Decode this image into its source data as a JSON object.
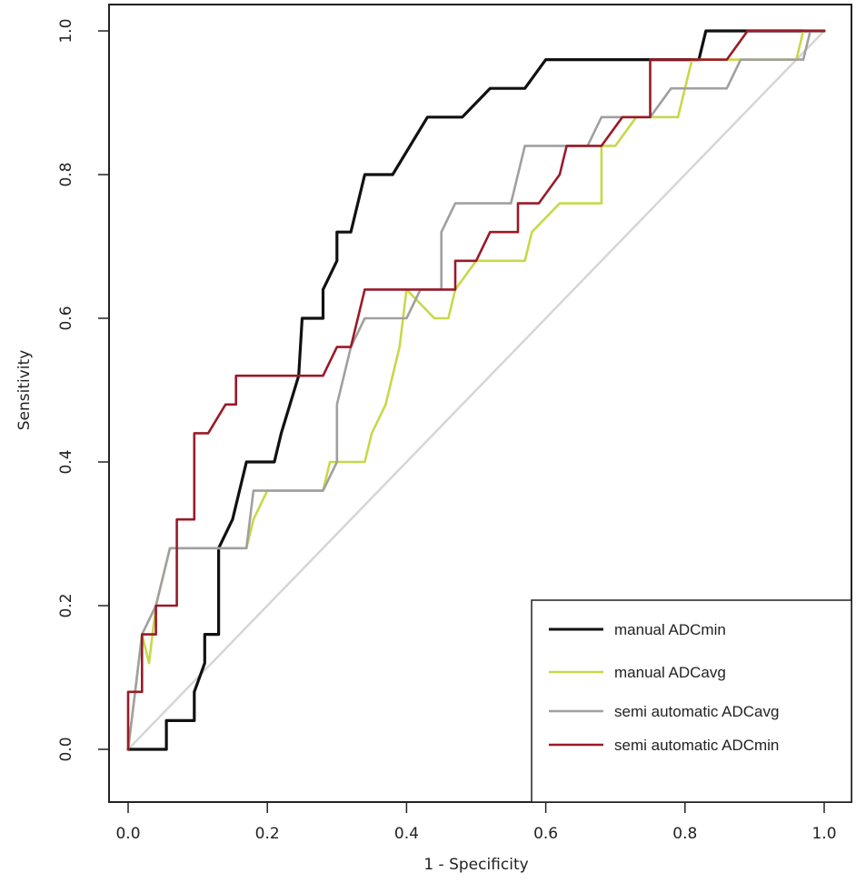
{
  "chart_data": {
    "type": "line",
    "title": "",
    "xlabel": "1 - Specificity",
    "ylabel": "Sensitivity",
    "xlim": [
      0,
      1
    ],
    "ylim": [
      0,
      1
    ],
    "x_ticks": [
      "0.0",
      "0.2",
      "0.4",
      "0.6",
      "0.8",
      "1.0"
    ],
    "y_ticks": [
      "0.0",
      "0.2",
      "0.4",
      "0.6",
      "0.8",
      "1.0"
    ],
    "grid": false,
    "legend_position": "bottom-right",
    "reference_line": {
      "from": [
        0,
        0
      ],
      "to": [
        1,
        1
      ],
      "color": "#d6d6d6"
    },
    "series": [
      {
        "name": "manual ADCmin",
        "color": "#111111",
        "points": [
          [
            0,
            0
          ],
          [
            0.055,
            0
          ],
          [
            0.055,
            0.04
          ],
          [
            0.095,
            0.04
          ],
          [
            0.095,
            0.08
          ],
          [
            0.11,
            0.12
          ],
          [
            0.11,
            0.16
          ],
          [
            0.13,
            0.16
          ],
          [
            0.13,
            0.28
          ],
          [
            0.15,
            0.32
          ],
          [
            0.17,
            0.4
          ],
          [
            0.21,
            0.4
          ],
          [
            0.22,
            0.44
          ],
          [
            0.245,
            0.52
          ],
          [
            0.25,
            0.6
          ],
          [
            0.28,
            0.6
          ],
          [
            0.28,
            0.64
          ],
          [
            0.3,
            0.68
          ],
          [
            0.3,
            0.72
          ],
          [
            0.32,
            0.72
          ],
          [
            0.34,
            0.8
          ],
          [
            0.38,
            0.8
          ],
          [
            0.43,
            0.88
          ],
          [
            0.48,
            0.88
          ],
          [
            0.52,
            0.92
          ],
          [
            0.57,
            0.92
          ],
          [
            0.6,
            0.96
          ],
          [
            0.82,
            0.96
          ],
          [
            0.83,
            1
          ],
          [
            1,
            1
          ]
        ]
      },
      {
        "name": "manual ADCavg",
        "color": "#c8d84a",
        "points": [
          [
            0,
            0
          ],
          [
            0.01,
            0.08
          ],
          [
            0.02,
            0.16
          ],
          [
            0.03,
            0.12
          ],
          [
            0.04,
            0.2
          ],
          [
            0.06,
            0.28
          ],
          [
            0.17,
            0.28
          ],
          [
            0.18,
            0.32
          ],
          [
            0.2,
            0.36
          ],
          [
            0.28,
            0.36
          ],
          [
            0.29,
            0.4
          ],
          [
            0.34,
            0.4
          ],
          [
            0.35,
            0.44
          ],
          [
            0.37,
            0.48
          ],
          [
            0.39,
            0.56
          ],
          [
            0.4,
            0.64
          ],
          [
            0.44,
            0.6
          ],
          [
            0.46,
            0.6
          ],
          [
            0.47,
            0.64
          ],
          [
            0.5,
            0.68
          ],
          [
            0.57,
            0.68
          ],
          [
            0.58,
            0.72
          ],
          [
            0.62,
            0.76
          ],
          [
            0.68,
            0.76
          ],
          [
            0.68,
            0.84
          ],
          [
            0.7,
            0.84
          ],
          [
            0.73,
            0.88
          ],
          [
            0.79,
            0.88
          ],
          [
            0.81,
            0.96
          ],
          [
            0.96,
            0.96
          ],
          [
            0.97,
            1
          ],
          [
            1,
            1
          ]
        ]
      },
      {
        "name": "semi automatic ADCavg",
        "color": "#a0a0a0",
        "points": [
          [
            0,
            0
          ],
          [
            0.01,
            0.08
          ],
          [
            0.02,
            0.16
          ],
          [
            0.04,
            0.2
          ],
          [
            0.06,
            0.28
          ],
          [
            0.17,
            0.28
          ],
          [
            0.18,
            0.36
          ],
          [
            0.28,
            0.36
          ],
          [
            0.3,
            0.4
          ],
          [
            0.3,
            0.48
          ],
          [
            0.32,
            0.56
          ],
          [
            0.34,
            0.6
          ],
          [
            0.4,
            0.6
          ],
          [
            0.42,
            0.64
          ],
          [
            0.45,
            0.64
          ],
          [
            0.45,
            0.72
          ],
          [
            0.47,
            0.76
          ],
          [
            0.55,
            0.76
          ],
          [
            0.57,
            0.84
          ],
          [
            0.66,
            0.84
          ],
          [
            0.68,
            0.88
          ],
          [
            0.75,
            0.88
          ],
          [
            0.78,
            0.92
          ],
          [
            0.86,
            0.92
          ],
          [
            0.88,
            0.96
          ],
          [
            0.97,
            0.96
          ],
          [
            0.98,
            1
          ],
          [
            1,
            1
          ]
        ]
      },
      {
        "name": "semi automatic ADCmin",
        "color": "#9a1a28",
        "points": [
          [
            0,
            0
          ],
          [
            0,
            0.08
          ],
          [
            0.02,
            0.08
          ],
          [
            0.02,
            0.16
          ],
          [
            0.04,
            0.16
          ],
          [
            0.04,
            0.2
          ],
          [
            0.07,
            0.2
          ],
          [
            0.07,
            0.32
          ],
          [
            0.095,
            0.32
          ],
          [
            0.095,
            0.44
          ],
          [
            0.115,
            0.44
          ],
          [
            0.14,
            0.48
          ],
          [
            0.155,
            0.48
          ],
          [
            0.155,
            0.52
          ],
          [
            0.28,
            0.52
          ],
          [
            0.3,
            0.56
          ],
          [
            0.32,
            0.56
          ],
          [
            0.34,
            0.64
          ],
          [
            0.47,
            0.64
          ],
          [
            0.47,
            0.68
          ],
          [
            0.5,
            0.68
          ],
          [
            0.52,
            0.72
          ],
          [
            0.56,
            0.72
          ],
          [
            0.56,
            0.76
          ],
          [
            0.59,
            0.76
          ],
          [
            0.62,
            0.8
          ],
          [
            0.63,
            0.84
          ],
          [
            0.68,
            0.84
          ],
          [
            0.71,
            0.88
          ],
          [
            0.75,
            0.88
          ],
          [
            0.75,
            0.96
          ],
          [
            0.86,
            0.96
          ],
          [
            0.89,
            1
          ],
          [
            1,
            1
          ]
        ]
      }
    ]
  }
}
